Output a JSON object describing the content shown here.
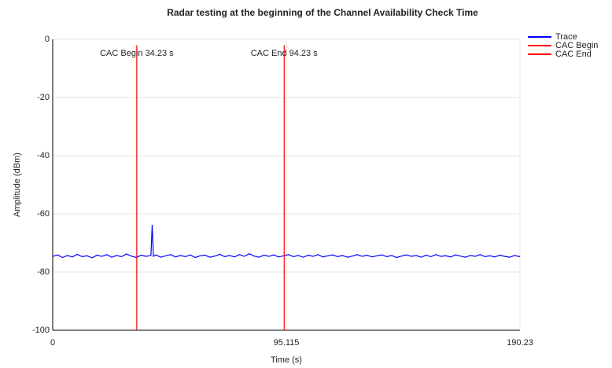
{
  "chart_data": {
    "type": "line",
    "title": "Radar testing at the beginning of the Channel Availability Check Time",
    "xlabel": "Time (s)",
    "ylabel": "Amplitude (dBm)",
    "xlim": [
      0,
      190.23
    ],
    "xticks": [
      0,
      95.115,
      190.23
    ],
    "ylim": [
      -100,
      0
    ],
    "yticks": [
      0,
      -20,
      -40,
      -60,
      -80,
      -100
    ],
    "grid": true,
    "legend": "right",
    "annotations": [
      {
        "text": "CAC Begin 34.23 s",
        "x": 34.23
      },
      {
        "text": "CAC End 94.23 s",
        "x": 94.23
      }
    ],
    "series": [
      {
        "name": "Trace",
        "color": "#0000ff",
        "x": [
          0,
          2,
          4,
          6,
          8,
          10,
          12,
          14,
          16,
          18,
          20,
          22,
          24,
          26,
          28,
          30,
          32,
          34,
          36,
          38,
          40,
          40.5,
          41,
          42,
          44,
          46,
          48,
          50,
          52,
          54,
          56,
          58,
          60,
          62,
          64,
          66,
          68,
          70,
          72,
          74,
          76,
          78,
          80,
          82,
          84,
          86,
          88,
          90,
          92,
          94,
          96,
          98,
          100,
          102,
          104,
          106,
          108,
          110,
          112,
          114,
          116,
          118,
          120,
          122,
          124,
          126,
          128,
          130,
          132,
          134,
          136,
          138,
          140,
          142,
          144,
          146,
          148,
          150,
          152,
          154,
          156,
          158,
          160,
          162,
          164,
          166,
          168,
          170,
          172,
          174,
          176,
          178,
          180,
          182,
          184,
          186,
          188,
          190,
          190.23
        ],
        "values": [
          -74.6,
          -74.1,
          -75.0,
          -74.3,
          -74.8,
          -73.9,
          -74.7,
          -74.4,
          -75.1,
          -74.2,
          -74.6,
          -74.0,
          -74.9,
          -74.3,
          -74.7,
          -73.8,
          -74.5,
          -75.0,
          -74.2,
          -74.6,
          -74.3,
          -63.8,
          -74.6,
          -74.1,
          -74.9,
          -74.4,
          -74.0,
          -74.8,
          -74.3,
          -74.7,
          -74.1,
          -75.0,
          -74.4,
          -74.2,
          -74.9,
          -74.5,
          -73.9,
          -74.7,
          -74.3,
          -74.8,
          -74.0,
          -74.6,
          -73.7,
          -74.5,
          -74.9,
          -74.2,
          -74.6,
          -74.1,
          -74.8,
          -74.4,
          -74.0,
          -74.7,
          -74.3,
          -74.9,
          -74.2,
          -74.6,
          -74.0,
          -74.8,
          -74.4,
          -74.1,
          -74.7,
          -74.3,
          -74.9,
          -74.5,
          -74.0,
          -74.6,
          -74.2,
          -74.8,
          -74.4,
          -74.1,
          -74.7,
          -74.3,
          -75.0,
          -74.5,
          -74.1,
          -74.6,
          -74.3,
          -74.9,
          -74.2,
          -74.7,
          -74.0,
          -74.6,
          -74.4,
          -74.8,
          -74.1,
          -74.5,
          -74.9,
          -74.3,
          -74.6,
          -74.0,
          -74.7,
          -74.4,
          -74.8,
          -74.2,
          -74.6,
          -74.9,
          -74.3,
          -74.7,
          -74.5
        ]
      },
      {
        "name": "CAC Begin",
        "color": "#ff0000",
        "x": [
          34.23,
          34.23
        ],
        "values": [
          -2,
          -100
        ]
      },
      {
        "name": "CAC End",
        "color": "#ff0000",
        "x": [
          94.23,
          94.23
        ],
        "values": [
          -2,
          -100
        ]
      }
    ]
  }
}
